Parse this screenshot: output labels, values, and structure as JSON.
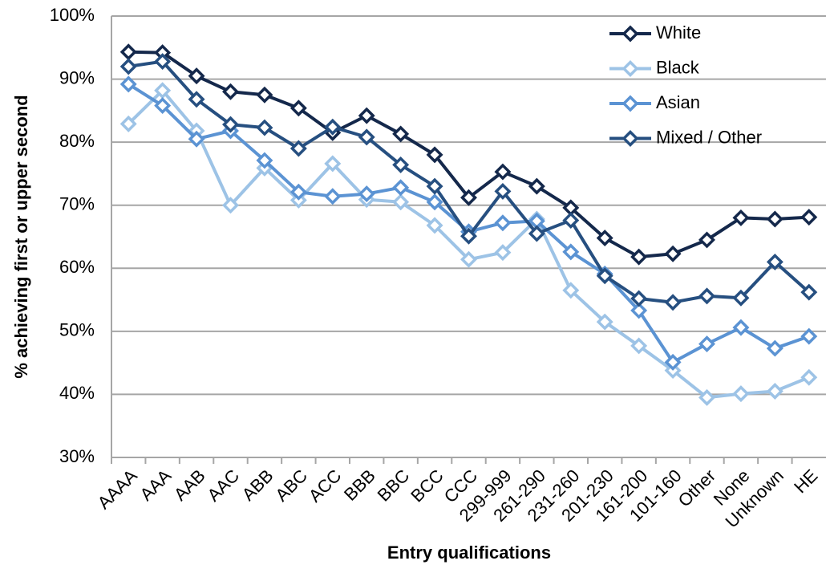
{
  "chart_data": {
    "type": "line",
    "xlabel": "Entry qualifications",
    "ylabel": "% achieving first or upper second",
    "categories": [
      "AAAA",
      "AAA",
      "AAB",
      "AAC",
      "ABB",
      "ABC",
      "ACC",
      "BBB",
      "BBC",
      "BCC",
      "CCC",
      "299-999",
      "261-290",
      "231-260",
      "201-230",
      "161-200",
      "101-160",
      "Other",
      "None",
      "Unknown",
      "HE"
    ],
    "series": [
      {
        "name": "White",
        "color": "#14284b",
        "values": [
          94.3,
          94.2,
          90.5,
          88,
          87.5,
          85.4,
          81.5,
          84.2,
          81.3,
          78,
          71.2,
          75.3,
          73,
          69.6,
          64.8,
          61.8,
          62.3,
          64.5,
          68,
          67.8,
          68.1
        ]
      },
      {
        "name": "Black",
        "color": "#9dc3e6",
        "values": [
          82.9,
          88.2,
          81.8,
          70,
          75.9,
          70.8,
          76.6,
          70.9,
          70.5,
          66.8,
          61.4,
          62.5,
          67.8,
          56.5,
          51.5,
          47.7,
          43.8,
          39.5,
          40.1,
          40.5,
          42.7
        ]
      },
      {
        "name": "Asian",
        "color": "#5b93d3",
        "values": [
          89.2,
          85.8,
          80.5,
          81.8,
          77.1,
          72.1,
          71.4,
          71.8,
          72.8,
          70.5,
          65.8,
          67.2,
          67.5,
          62.6,
          59.1,
          53.3,
          45.1,
          48,
          50.6,
          47.3,
          49.2
        ]
      },
      {
        "name": "Mixed / Other",
        "color": "#264f80",
        "values": [
          92,
          92.8,
          86.8,
          82.8,
          82.3,
          79,
          82.4,
          80.8,
          76.4,
          73,
          65.1,
          72.2,
          65.5,
          67.6,
          58.8,
          55.2,
          54.6,
          55.6,
          55.3,
          61,
          56.2
        ]
      }
    ],
    "ylim": [
      30,
      100
    ],
    "yticks": [
      {
        "value": 30,
        "label": "30%"
      },
      {
        "value": 40,
        "label": "40%"
      },
      {
        "value": 50,
        "label": "50%"
      },
      {
        "value": 60,
        "label": "60%"
      },
      {
        "value": 70,
        "label": "70%"
      },
      {
        "value": 80,
        "label": "80%"
      },
      {
        "value": 90,
        "label": "90%"
      },
      {
        "value": 100,
        "label": "100%"
      }
    ],
    "grid": true,
    "legend": "upper right"
  }
}
